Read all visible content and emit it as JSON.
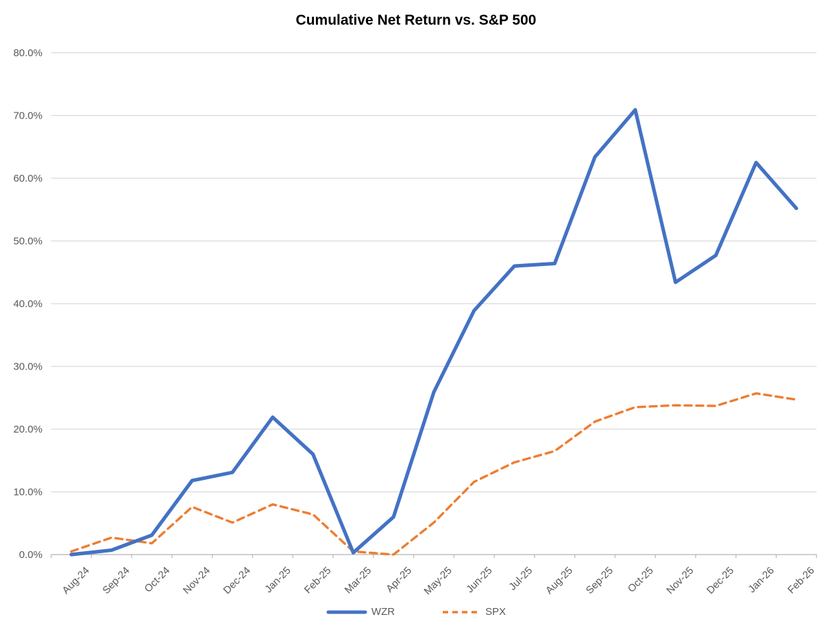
{
  "title": "Cumulative Net Return vs. S&P 500",
  "chart_data": {
    "type": "line",
    "categories": [
      "Aug-24",
      "Sep-24",
      "Oct-24",
      "Nov-24",
      "Dec-24",
      "Jan-25",
      "Feb-25",
      "Mar-25",
      "Apr-25",
      "May-25",
      "Jun-25",
      "Jul-25",
      "Aug-25",
      "Sep-25",
      "Oct-25",
      "Nov-25",
      "Dec-25",
      "Jan-26",
      "Feb-26"
    ],
    "series": [
      {
        "name": "WZR",
        "color": "#4472C4",
        "line_style": "solid",
        "values": [
          0.0,
          0.7,
          3.1,
          11.8,
          13.1,
          21.9,
          16.0,
          0.3,
          6.0,
          25.9,
          38.9,
          46.0,
          46.4,
          63.4,
          70.9,
          43.4,
          47.7,
          62.5,
          55.2
        ]
      },
      {
        "name": "SPX",
        "color": "#ED7D31",
        "line_style": "dashed",
        "values": [
          0.5,
          2.7,
          1.8,
          7.6,
          5.1,
          8.0,
          6.4,
          0.5,
          0.0,
          5.1,
          11.6,
          14.7,
          16.5,
          21.2,
          23.5,
          23.8,
          23.7,
          25.7,
          24.7
        ]
      }
    ],
    "title": "Cumulative Net Return vs. S&P 500",
    "xlabel": "",
    "ylabel": "",
    "ylim": [
      0,
      80
    ],
    "ytick_step": 10,
    "ytick_labels": [
      "0.0%",
      "10.0%",
      "20.0%",
      "30.0%",
      "40.0%",
      "50.0%",
      "60.0%",
      "70.0%",
      "80.0%"
    ],
    "grid": true,
    "legend_position": "bottom"
  },
  "legend": {
    "wzr_label": "WZR",
    "spx_label": "SPX"
  },
  "colors": {
    "wzr_line": "#4472C4",
    "spx_line": "#ED7D31",
    "gridline": "#D9D9D9",
    "axis_line": "#BFBFBF",
    "tick_label": "#595959",
    "title_text": "#000000",
    "background": "#FFFFFF"
  }
}
